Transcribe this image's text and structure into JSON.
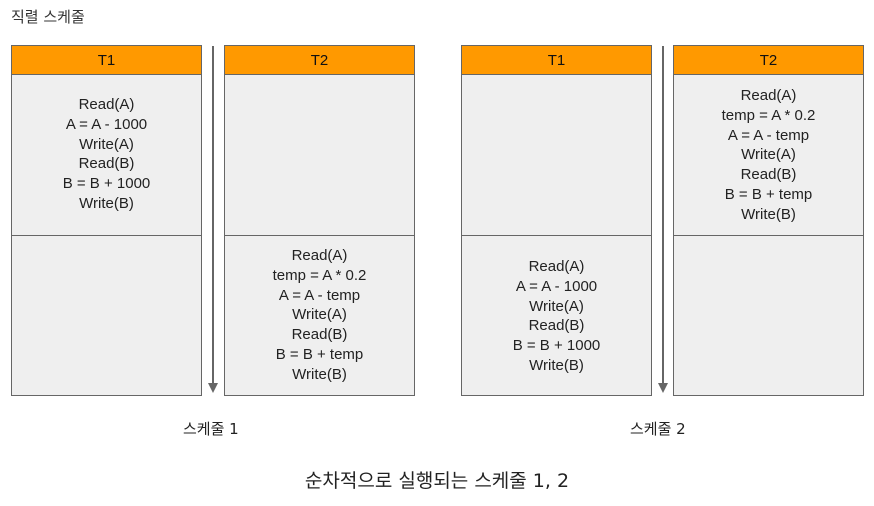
{
  "title": "직렬 스케줄",
  "schedules": [
    {
      "label": "스케줄 1",
      "t1_header": "T1",
      "t2_header": "T2",
      "t1_ops": [
        "Read(A)",
        "A = A - 1000",
        "Write(A)",
        "Read(B)",
        "B = B + 1000",
        "Write(B)"
      ],
      "t2_ops": [
        "Read(A)",
        "temp = A * 0.2",
        "A = A - temp",
        "Write(A)",
        "Read(B)",
        "B = B + temp",
        "Write(B)"
      ]
    },
    {
      "label": "스케줄 2",
      "t1_header": "T1",
      "t2_header": "T2",
      "t1_ops": [
        "Read(A)",
        "A = A - 1000",
        "Write(A)",
        "Read(B)",
        "B = B + 1000",
        "Write(B)"
      ],
      "t2_ops": [
        "Read(A)",
        "temp = A * 0.2",
        "A = A - temp",
        "Write(A)",
        "Read(B)",
        "B = B + temp",
        "Write(B)"
      ]
    }
  ],
  "caption": "순차적으로 실행되는 스케줄 1, 2",
  "colors": {
    "header": "#ff9900",
    "cell": "#efefef",
    "border": "#666666"
  }
}
